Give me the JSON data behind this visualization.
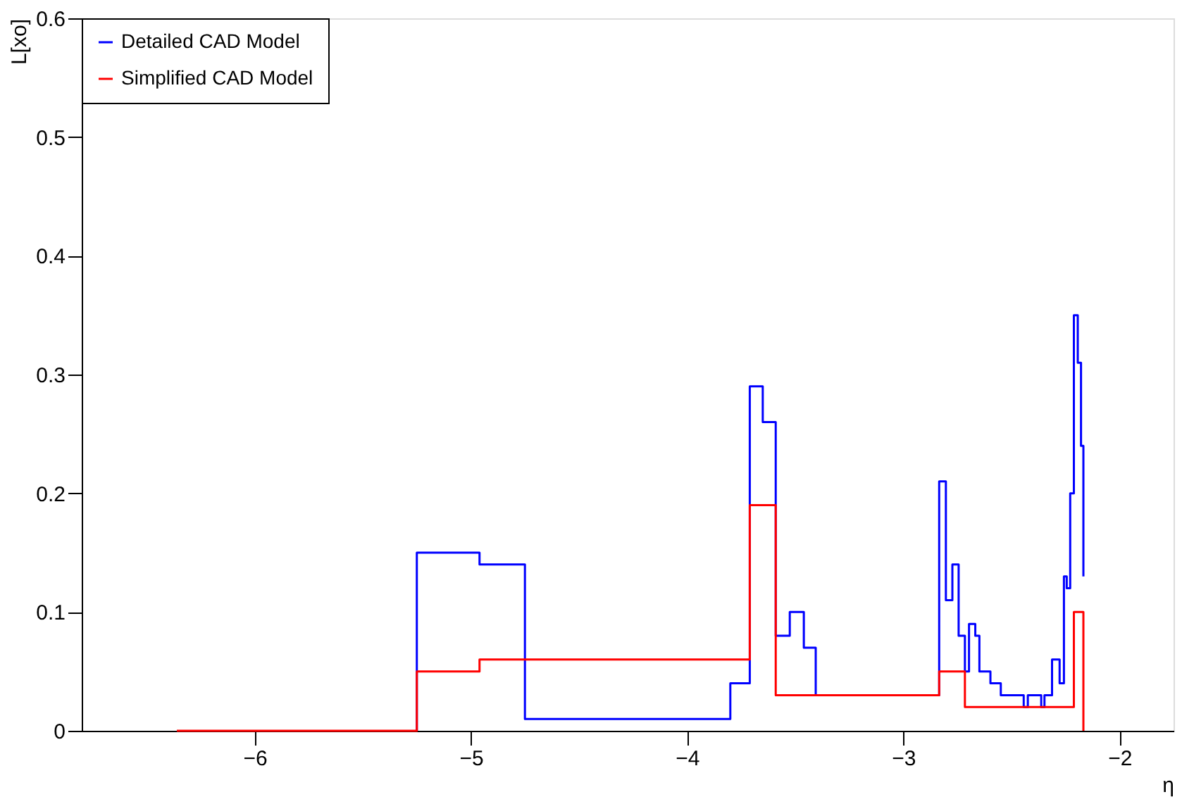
{
  "chart_data": {
    "type": "step",
    "xlabel": "η",
    "ylabel": "L[xo]",
    "xlim": [
      -6.8,
      -1.75
    ],
    "xticks": [
      -6,
      -5,
      -4,
      -3,
      -2
    ],
    "ylim": [
      0,
      0.6
    ],
    "yticks": [
      0,
      0.1,
      0.2,
      0.3,
      0.4,
      0.5,
      0.6
    ],
    "grid": false,
    "legend": "top left",
    "line_style": "solid",
    "marker": "none",
    "series": [
      {
        "name": "Detailed CAD Model",
        "color": "#0000ff",
        "x": [
          -5.25,
          -5.25,
          -4.96,
          -4.75,
          -3.8,
          -3.71,
          -3.65,
          -3.59,
          -3.525,
          -3.46,
          -3.405,
          -2.834,
          -2.803,
          -2.773,
          -2.744,
          -2.715,
          -2.696,
          -2.667,
          -2.648,
          -2.597,
          -2.549,
          -2.443,
          -2.424,
          -2.362,
          -2.347,
          -2.312,
          -2.277,
          -2.257,
          -2.244,
          -2.228,
          -2.211,
          -2.193,
          -2.178,
          -2.167
        ],
        "values": [
          0,
          0.15,
          0.14,
          0.01,
          0.04,
          0.29,
          0.26,
          0.08,
          0.1,
          0.07,
          0.03,
          0.21,
          0.11,
          0.14,
          0.08,
          0.05,
          0.09,
          0.08,
          0.05,
          0.04,
          0.03,
          0.02,
          0.03,
          0.02,
          0.03,
          0.06,
          0.04,
          0.13,
          0.12,
          0.2,
          0.35,
          0.31,
          0.24,
          0.13
        ]
      },
      {
        "name": "Simplified CAD Model",
        "color": "#ff0000",
        "x": [
          -6.36,
          -5.25,
          -4.96,
          -3.71,
          -3.59,
          -2.834,
          -2.715,
          -2.211,
          -2.167
        ],
        "values": [
          0,
          0.05,
          0.06,
          0.19,
          0.03,
          0.05,
          0.02,
          0.1,
          0
        ]
      }
    ]
  }
}
